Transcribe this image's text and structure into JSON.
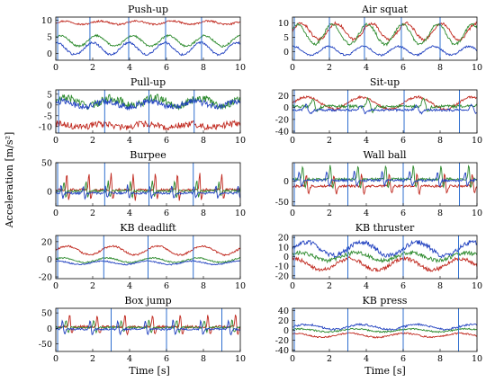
{
  "figure": {
    "ylabel": "Acceleration [m/s²]",
    "xlabel": "Time [s]",
    "colors": {
      "x": "#1f3fbf",
      "y": "#2e8b2e",
      "z": "#c0281e",
      "marker": "#2f6fcf",
      "grid_pink": "#ff9fd0"
    }
  },
  "chart_data": [
    {
      "type": "line",
      "title": "Push-up",
      "xlim": [
        0,
        10
      ],
      "ylim": [
        -2,
        11
      ],
      "xticks": [
        0,
        2,
        4,
        6,
        8,
        10
      ],
      "yticks": [
        0,
        5,
        10
      ],
      "rep_markers": [
        0.1,
        1.85,
        3.95,
        5.95,
        7.9
      ],
      "series": [
        {
          "color": "#c0281e",
          "mean": 9.3,
          "amp": 0.5,
          "period": 1.95,
          "noise": 0.25,
          "shape": "smooth"
        },
        {
          "color": "#2e8b2e",
          "mean": 3.8,
          "amp": 1.6,
          "period": 1.95,
          "noise": 0.3,
          "shape": "smooth"
        },
        {
          "color": "#1f3fbf",
          "mean": 1.5,
          "amp": 1.8,
          "period": 1.95,
          "noise": 0.3,
          "shape": "smooth"
        }
      ]
    },
    {
      "type": "line",
      "title": "Air squat",
      "xlim": [
        0,
        10
      ],
      "ylim": [
        -3,
        12
      ],
      "xticks": [
        0,
        2,
        4,
        6,
        8,
        10
      ],
      "yticks": [
        0,
        5,
        10
      ],
      "rep_markers": [
        0.1,
        2.0,
        3.9,
        5.9,
        8.0
      ],
      "series": [
        {
          "color": "#c0281e",
          "mean": 7.0,
          "amp": 2.8,
          "period": 1.9,
          "noise": 0.5,
          "shape": "smooth"
        },
        {
          "color": "#2e8b2e",
          "mean": 6.0,
          "amp": 3.5,
          "period": 1.9,
          "noise": 0.5,
          "shape": "smooth"
        },
        {
          "color": "#1f3fbf",
          "mean": 0.3,
          "amp": 1.5,
          "period": 1.9,
          "noise": 0.3,
          "shape": "smooth"
        }
      ]
    },
    {
      "type": "line",
      "title": "Pull-up",
      "xlim": [
        0,
        10
      ],
      "ylim": [
        -13,
        7
      ],
      "xticks": [
        0,
        2,
        4,
        6,
        8,
        10
      ],
      "yticks": [
        -10,
        -5,
        0,
        5
      ],
      "rep_markers": [
        0.15,
        2.65,
        5.05,
        7.5
      ],
      "series": [
        {
          "color": "#2e8b2e",
          "mean": 1.5,
          "amp": 1.8,
          "period": 2.4,
          "noise": 1.8,
          "shape": "smooth"
        },
        {
          "color": "#1f3fbf",
          "mean": 0.5,
          "amp": 1.2,
          "period": 2.4,
          "noise": 1.4,
          "shape": "smooth"
        },
        {
          "color": "#c0281e",
          "mean": -9.5,
          "amp": 0.8,
          "period": 2.4,
          "noise": 1.5,
          "shape": "smooth"
        }
      ]
    },
    {
      "type": "line",
      "title": "Sit-up",
      "xlim": [
        0,
        10
      ],
      "ylim": [
        -43,
        30
      ],
      "xticks": [
        0,
        2,
        4,
        6,
        8,
        10
      ],
      "yticks": [
        -40,
        -20,
        0,
        20
      ],
      "rep_markers": [
        0.1,
        3.0,
        6.05,
        9.05
      ],
      "series": [
        {
          "color": "#c0281e",
          "mean": 8.0,
          "amp": 10.0,
          "period": 3.0,
          "noise": 2.0,
          "shape": "smooth"
        },
        {
          "color": "#2e8b2e",
          "mean": 2.0,
          "amp": 14.0,
          "period": 3.0,
          "noise": 2.5,
          "shape": "spiky"
        },
        {
          "color": "#1f3fbf",
          "mean": -4.0,
          "amp": 9.0,
          "period": 3.0,
          "noise": 2.0,
          "shape": "spiky"
        }
      ]
    },
    {
      "type": "line",
      "title": "Burpee",
      "xlim": [
        0,
        10
      ],
      "ylim": [
        -25,
        50
      ],
      "xticks": [
        0,
        2,
        4,
        6,
        8,
        10
      ],
      "yticks": [
        0,
        50
      ],
      "rep_markers": [
        0.1,
        2.65,
        5.05,
        7.45
      ],
      "series": [
        {
          "color": "#c0281e",
          "mean": 3.0,
          "amp": 30.0,
          "period": 1.2,
          "noise": 2.0,
          "shape": "spiky"
        },
        {
          "color": "#2e8b2e",
          "mean": 1.0,
          "amp": 18.0,
          "period": 1.2,
          "noise": 2.0,
          "shape": "spiky"
        },
        {
          "color": "#1f3fbf",
          "mean": -3.0,
          "amp": 14.0,
          "period": 1.2,
          "noise": 2.0,
          "shape": "spiky"
        }
      ]
    },
    {
      "type": "line",
      "title": "Wall ball",
      "xlim": [
        0,
        10
      ],
      "ylim": [
        -60,
        45
      ],
      "xticks": [
        0,
        2,
        4,
        6,
        8,
        10
      ],
      "yticks": [
        -50,
        0
      ],
      "rep_markers": [
        0.1,
        3.0,
        6.0,
        9.05
      ],
      "series": [
        {
          "color": "#c0281e",
          "mean": -12.0,
          "amp": 30.0,
          "period": 1.5,
          "noise": 3.0,
          "shape": "spiky"
        },
        {
          "color": "#2e8b2e",
          "mean": 5.0,
          "amp": 35.0,
          "period": 1.5,
          "noise": 3.0,
          "shape": "spiky"
        },
        {
          "color": "#1f3fbf",
          "mean": 2.0,
          "amp": 22.0,
          "period": 1.5,
          "noise": 3.0,
          "shape": "spiky"
        }
      ]
    },
    {
      "type": "line",
      "title": "KB deadlift",
      "xlim": [
        0,
        10
      ],
      "ylim": [
        -22,
        27
      ],
      "xticks": [
        0,
        2,
        4,
        6,
        8,
        10
      ],
      "yticks": [
        -20,
        0,
        20
      ],
      "rep_markers": [
        0.1,
        2.6,
        5.0,
        7.45
      ],
      "series": [
        {
          "color": "#c0281e",
          "mean": 10.0,
          "amp": 5.0,
          "period": 2.45,
          "noise": 1.0,
          "shape": "smooth"
        },
        {
          "color": "#2e8b2e",
          "mean": -1.0,
          "amp": 2.5,
          "period": 2.45,
          "noise": 0.7,
          "shape": "smooth"
        },
        {
          "color": "#1f3fbf",
          "mean": -4.0,
          "amp": 2.0,
          "period": 2.45,
          "noise": 0.7,
          "shape": "smooth"
        }
      ]
    },
    {
      "type": "line",
      "title": "KB thruster",
      "xlim": [
        0,
        10
      ],
      "ylim": [
        -23,
        22
      ],
      "xticks": [
        0,
        2,
        4,
        6,
        8,
        10
      ],
      "yticks": [
        -20,
        -10,
        0,
        10,
        20
      ],
      "rep_markers": [
        0.1,
        3.0,
        6.0,
        9.0
      ],
      "series": [
        {
          "color": "#1f3fbf",
          "mean": 8.0,
          "amp": 7.0,
          "period": 3.0,
          "noise": 2.5,
          "shape": "smooth"
        },
        {
          "color": "#2e8b2e",
          "mean": 0.0,
          "amp": 4.0,
          "period": 3.0,
          "noise": 2.0,
          "shape": "smooth"
        },
        {
          "color": "#c0281e",
          "mean": -8.0,
          "amp": 6.0,
          "period": 3.0,
          "noise": 2.0,
          "shape": "smooth"
        }
      ]
    },
    {
      "type": "line",
      "title": "Box jump",
      "xlim": [
        0,
        10
      ],
      "ylim": [
        -75,
        65
      ],
      "xticks": [
        0,
        2,
        4,
        6,
        8,
        10
      ],
      "yticks": [
        -50,
        0,
        50
      ],
      "rep_markers": [
        0.1,
        3.0,
        6.0,
        9.0
      ],
      "series": [
        {
          "color": "#c0281e",
          "mean": 5.0,
          "amp": 40.0,
          "period": 1.5,
          "noise": 4.0,
          "shape": "spiky"
        },
        {
          "color": "#2e8b2e",
          "mean": 3.0,
          "amp": 25.0,
          "period": 1.5,
          "noise": 3.0,
          "shape": "spiky"
        },
        {
          "color": "#1f3fbf",
          "mean": -3.0,
          "amp": 30.0,
          "period": 1.5,
          "noise": 3.0,
          "shape": "spiky"
        }
      ]
    },
    {
      "type": "line",
      "title": "KB press",
      "xlim": [
        0,
        10
      ],
      "ylim": [
        -43,
        45
      ],
      "xticks": [
        0,
        2,
        4,
        6,
        8,
        10
      ],
      "yticks": [
        -40,
        -20,
        0,
        20,
        40
      ],
      "rep_markers": [
        0.1,
        3.0,
        6.0,
        9.0
      ],
      "series": [
        {
          "color": "#1f3fbf",
          "mean": 7.0,
          "amp": 5.0,
          "period": 3.0,
          "noise": 2.0,
          "shape": "smooth"
        },
        {
          "color": "#2e8b2e",
          "mean": 0.0,
          "amp": 3.0,
          "period": 3.0,
          "noise": 1.5,
          "shape": "smooth"
        },
        {
          "color": "#c0281e",
          "mean": -10.0,
          "amp": 4.0,
          "period": 3.0,
          "noise": 1.5,
          "shape": "smooth"
        }
      ]
    }
  ]
}
